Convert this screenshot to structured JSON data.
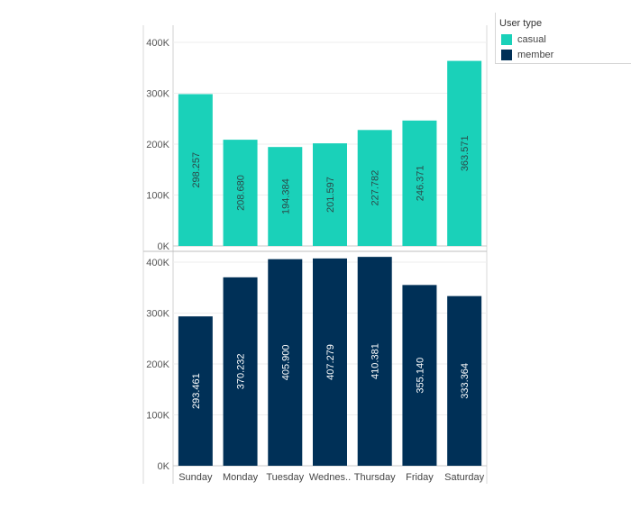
{
  "chart_data": {
    "type": "bar",
    "categories": [
      "Sunday",
      "Monday",
      "Tuesday",
      "Wednes..",
      "Thursday",
      "Friday",
      "Saturday"
    ],
    "ylim": [
      0,
      400000
    ],
    "yticks": [
      "0K",
      "100K",
      "200K",
      "300K",
      "400K"
    ],
    "grid": true,
    "legend": {
      "title": "User type",
      "placement": "top-right",
      "items": [
        {
          "label": "casual",
          "color": "#1ad1b9"
        },
        {
          "label": "member",
          "color": "#003057"
        }
      ]
    },
    "panels": [
      {
        "name": "casual",
        "color": "#1ad1b9",
        "values": [
          298257,
          208680,
          194384,
          201597,
          227782,
          246371,
          363571
        ],
        "data_labels": [
          "298.257",
          "208.680",
          "194.384",
          "201.597",
          "227.782",
          "246.371",
          "363.571"
        ]
      },
      {
        "name": "member",
        "color": "#003057",
        "values": [
          293461,
          370232,
          405900,
          407279,
          410381,
          355140,
          333364
        ],
        "data_labels": [
          "293.461",
          "370.232",
          "405.900",
          "407.279",
          "410.381",
          "355.140",
          "333.364"
        ]
      }
    ]
  }
}
